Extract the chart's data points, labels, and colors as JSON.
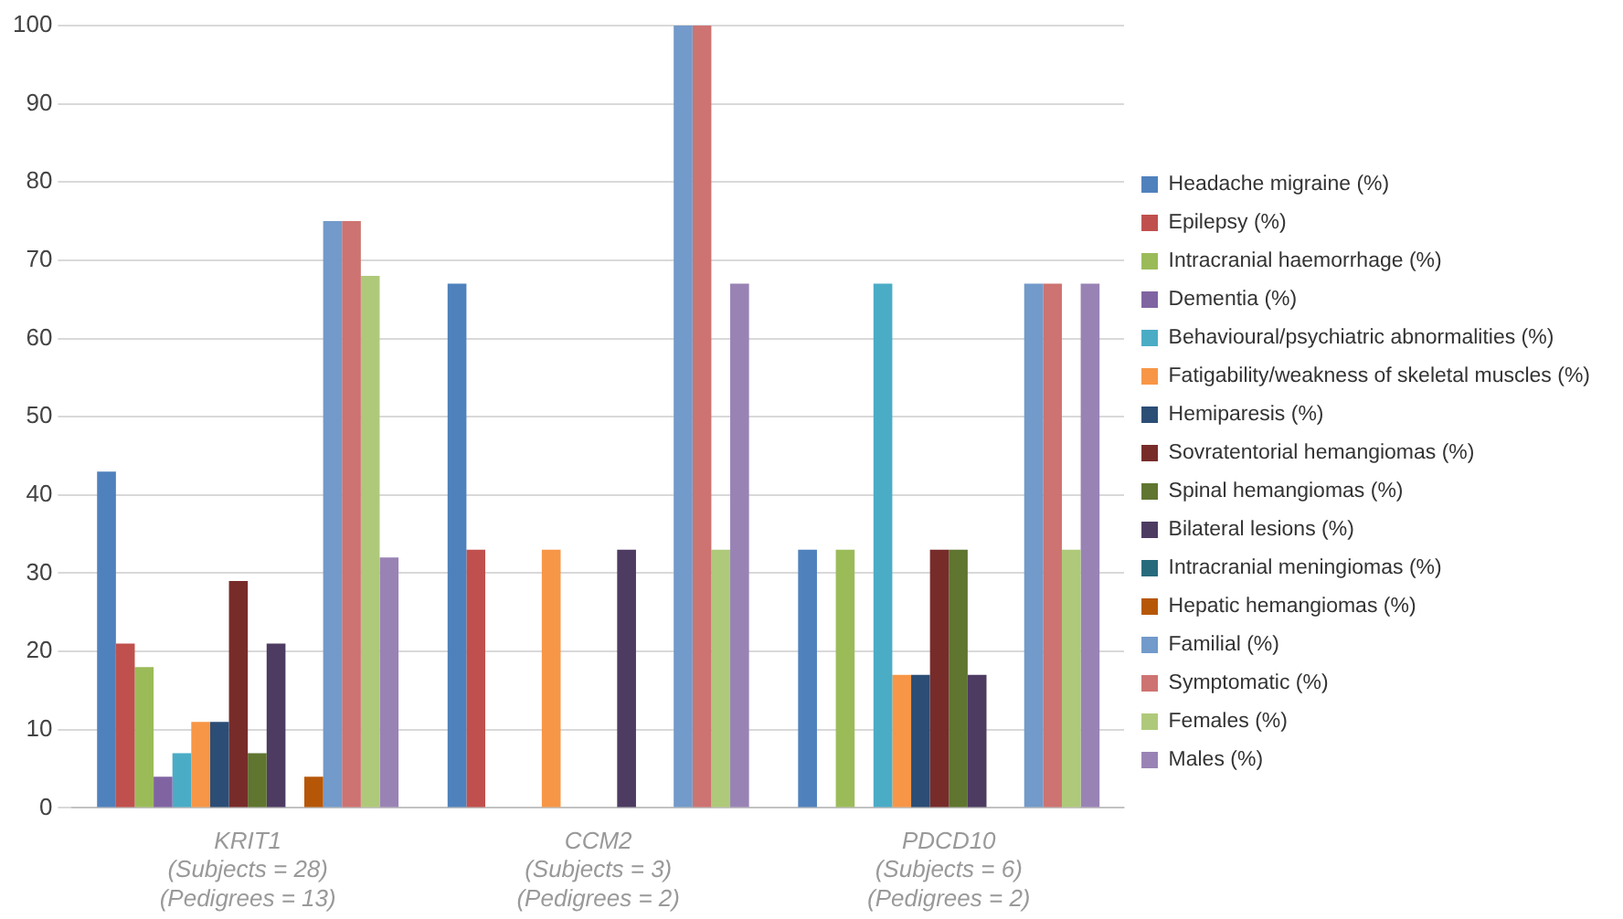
{
  "chart_data": {
    "type": "bar",
    "categories": [
      "KRIT1\n(Subjects = 28)\n(Pedigrees = 13)",
      "CCM2\n(Subjects = 3)\n(Pedigrees = 2)",
      "PDCD10\n(Subjects = 6)\n(Pedigrees = 2)"
    ],
    "series": [
      {
        "name": "Headache migraine (%)",
        "color": "#4f81bd",
        "values": [
          43,
          67,
          33
        ]
      },
      {
        "name": "Epilepsy (%)",
        "color": "#c0504d",
        "values": [
          21,
          33,
          0
        ]
      },
      {
        "name": "Intracranial haemorrhage (%)",
        "color": "#9bbb59",
        "values": [
          18,
          0,
          33
        ]
      },
      {
        "name": "Dementia (%)",
        "color": "#8064a2",
        "values": [
          4,
          0,
          0
        ]
      },
      {
        "name": "Behavioural/psychiatric abnormalities (%)",
        "color": "#4bacc6",
        "values": [
          7,
          0,
          67
        ]
      },
      {
        "name": "Fatigability/weakness of skeletal muscles (%)",
        "color": "#f79646",
        "values": [
          11,
          33,
          17
        ]
      },
      {
        "name": "Hemiparesis (%)",
        "color": "#2c4d75",
        "values": [
          11,
          0,
          17
        ]
      },
      {
        "name": "Sovratentorial hemangiomas (%)",
        "color": "#772c2a",
        "values": [
          29,
          0,
          33
        ]
      },
      {
        "name": "Spinal hemangiomas (%)",
        "color": "#5f7530",
        "values": [
          7,
          0,
          33
        ]
      },
      {
        "name": "Bilateral lesions (%)",
        "color": "#4d3b62",
        "values": [
          21,
          33,
          17
        ]
      },
      {
        "name": "Intracranial meningiomas (%)",
        "color": "#276a7c",
        "values": [
          0,
          0,
          0
        ]
      },
      {
        "name": "Hepatic hemangiomas (%)",
        "color": "#b65708",
        "values": [
          4,
          0,
          0
        ]
      },
      {
        "name": "Familial (%)",
        "color": "#729aca",
        "values": [
          75,
          100,
          67
        ]
      },
      {
        "name": "Symptomatic (%)",
        "color": "#cd7371",
        "values": [
          75,
          100,
          67
        ]
      },
      {
        "name": "Females (%)",
        "color": "#afc97a",
        "values": [
          68,
          33,
          33
        ]
      },
      {
        "name": "Males (%)",
        "color": "#9983b5",
        "values": [
          32,
          67,
          67
        ]
      }
    ],
    "ylim": [
      0,
      100
    ],
    "yticks": [
      0,
      10,
      20,
      30,
      40,
      50,
      60,
      70,
      80,
      90,
      100
    ],
    "grid": "y",
    "legend": "right"
  }
}
